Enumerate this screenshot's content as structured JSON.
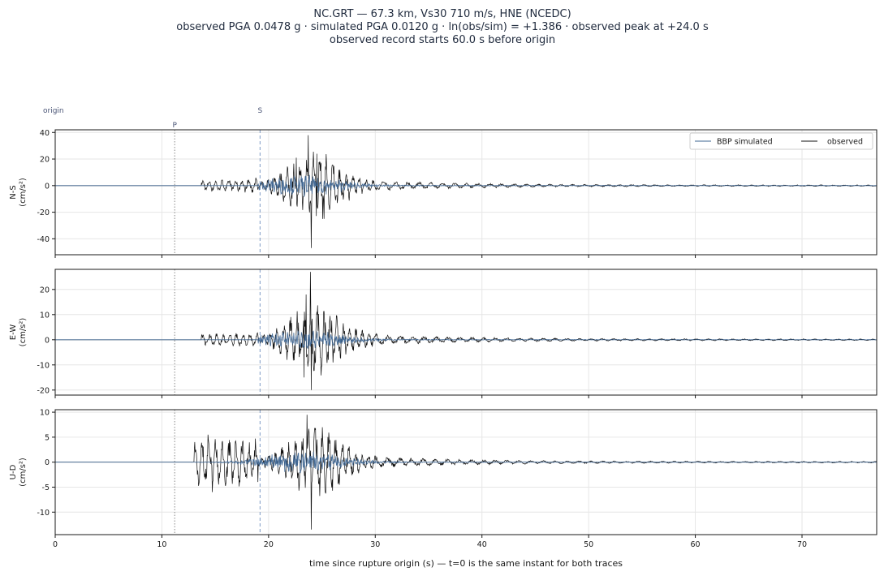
{
  "title": {
    "line1": "NC.GRT  —  67.3 km, Vs30 710 m/s, HNE (NCEDC)",
    "line2": "observed PGA 0.0478 g   ·   simulated PGA 0.0120 g   ·   ln(obs/sim) = +1.386   ·   observed peak at +24.0 s",
    "line3": "observed record starts 60.0 s before origin"
  },
  "xlabel": "time since rupture origin (s)   —   t=0 is the same instant for both traces",
  "markers": {
    "origin": {
      "label": "origin",
      "t": 0
    },
    "p": {
      "label": "P",
      "t": 11.2
    },
    "s": {
      "label": "S",
      "t": 19.2
    }
  },
  "legend": {
    "simulated": "BBP simulated",
    "observed": "observed",
    "placement": "upper-right"
  },
  "colors": {
    "observed": "#111111",
    "simulated": "#3d6592",
    "grid": "#e6e6e6",
    "p_marker": "#888888",
    "s_marker": "#7f9bc4"
  },
  "chart_data": {
    "type": "line",
    "shared_x": true,
    "xlim": [
      0,
      77
    ],
    "xticks": [
      0,
      10,
      20,
      30,
      40,
      50,
      60,
      70
    ],
    "grid": true,
    "panels": [
      {
        "name": "N-S",
        "ylabel_line1": "N-S",
        "ylabel_line2": "(cm/s²)",
        "ylim": [
          -52,
          42
        ],
        "yticks": [
          -40,
          -20,
          0,
          20,
          40
        ],
        "observed_peaks": [
          [
            23.7,
            38
          ],
          [
            24.0,
            -47
          ],
          [
            22.6,
            21
          ],
          [
            24.5,
            24
          ],
          [
            25.2,
            -25
          ]
        ],
        "simulated_peak_abs": 12,
        "observed_start": 13.7,
        "simulated_start": 19.0
      },
      {
        "name": "E-W",
        "ylabel_line1": "E-W",
        "ylabel_line2": "(cm/s²)",
        "ylim": [
          -22,
          28
        ],
        "yticks": [
          -20,
          -10,
          0,
          10,
          20
        ],
        "observed_peaks": [
          [
            23.9,
            27
          ],
          [
            24.0,
            -20
          ],
          [
            23.5,
            18
          ],
          [
            23.3,
            -15
          ]
        ],
        "simulated_peak_abs": 6,
        "observed_start": 13.7,
        "simulated_start": 19.0
      },
      {
        "name": "U-D",
        "ylabel_line1": "U-D",
        "ylabel_line2": "(cm/s²)",
        "ylim": [
          -14.5,
          10.5
        ],
        "yticks": [
          -10,
          -5,
          0,
          5,
          10
        ],
        "observed_peaks": [
          [
            23.6,
            9.5
          ],
          [
            24.0,
            -13.5
          ],
          [
            14.3,
            5.5
          ],
          [
            14.7,
            -6
          ]
        ],
        "simulated_peak_abs": 3.5,
        "observed_start": 13.0,
        "simulated_start": 12.8
      }
    ]
  }
}
